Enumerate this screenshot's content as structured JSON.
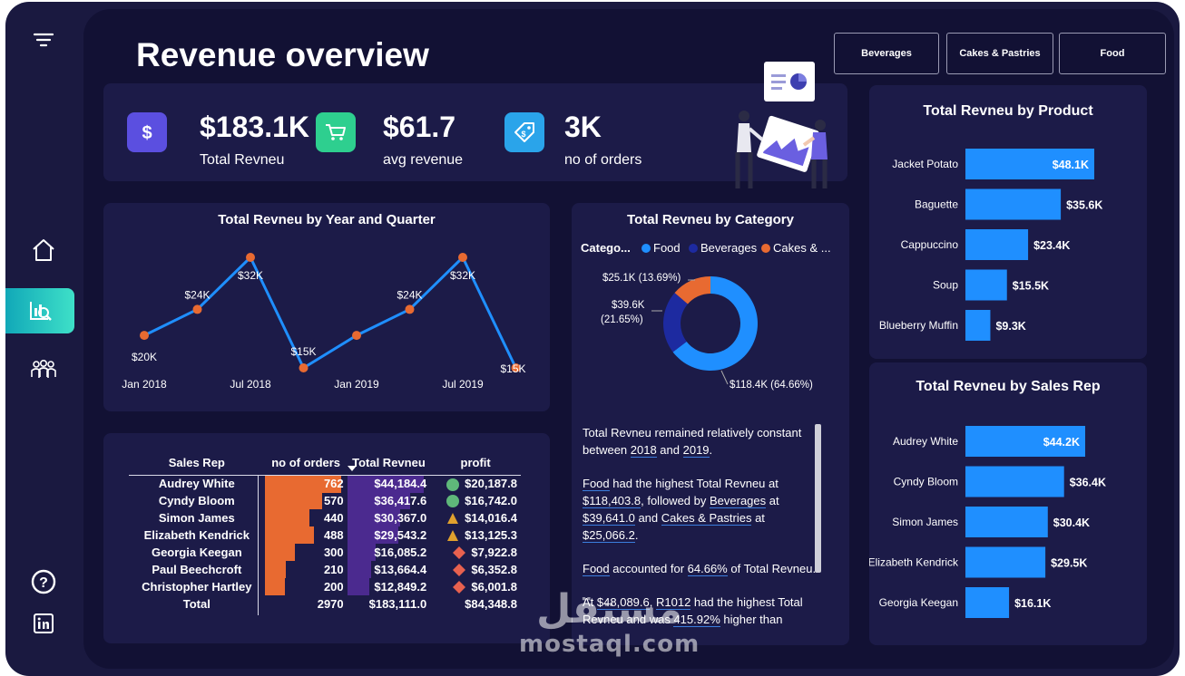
{
  "page": {
    "title": "Revenue overview"
  },
  "slicers": [
    "Beverages",
    "Cakes & Pastries",
    "Food"
  ],
  "sidebar": {
    "items": [
      "filter-icon",
      "home-icon",
      "analytics-icon",
      "team-icon",
      "help-icon",
      "linkedin-icon"
    ],
    "active": "analytics-icon"
  },
  "kpis": [
    {
      "icon": "dollar-icon",
      "color": "#5b4fe0",
      "value": "$183.1K",
      "label": "Total Revneu"
    },
    {
      "icon": "cart-icon",
      "color": "#2ecf8f",
      "value": "$61.7",
      "label": "avg revenue"
    },
    {
      "icon": "tag-icon",
      "color": "#2aa4ea",
      "value": "3K",
      "label": "no of orders"
    }
  ],
  "line_chart": {
    "title": "Total Revneu by Year and Quarter",
    "x_ticks": [
      "Jan 2018",
      "Jul 2018",
      "Jan 2019",
      "Jul 2019"
    ],
    "labels": [
      "$20K",
      "$24K",
      "$32K",
      "$15K",
      "",
      "$24K",
      "$32K",
      "$15K"
    ]
  },
  "donut": {
    "title": "Total Revneu by Category",
    "legend_title": "Catego...",
    "legend": [
      "Food",
      "Beverages",
      "Cakes & ..."
    ],
    "labels": {
      "cakes": "$25.1K (13.69%)",
      "bev_value": "$39.6K",
      "bev_pct": "(21.65%)",
      "food": "$118.4K (64.66%)"
    }
  },
  "table": {
    "headers": [
      "Sales Rep",
      "no of orders",
      "Total Revneu",
      "profit"
    ],
    "rows": [
      {
        "name": "Audrey White",
        "orders": "762",
        "revenue": "$44,184.4",
        "profit": "$20,187.8",
        "mark": "circle"
      },
      {
        "name": "Cyndy Bloom",
        "orders": "570",
        "revenue": "$36,417.6",
        "profit": "$16,742.0",
        "mark": "circle"
      },
      {
        "name": "Simon James",
        "orders": "440",
        "revenue": "$30,367.0",
        "profit": "$14,016.4",
        "mark": "triangle"
      },
      {
        "name": "Elizabeth Kendrick",
        "orders": "488",
        "revenue": "$29,543.2",
        "profit": "$13,125.3",
        "mark": "triangle"
      },
      {
        "name": "Georgia Keegan",
        "orders": "300",
        "revenue": "$16,085.2",
        "profit": "$7,922.8",
        "mark": "diamond"
      },
      {
        "name": "Paul Beechcroft",
        "orders": "210",
        "revenue": "$13,664.4",
        "profit": "$6,352.8",
        "mark": "diamond"
      },
      {
        "name": "Christopher Hartley",
        "orders": "200",
        "revenue": "$12,849.2",
        "profit": "$6,001.8",
        "mark": "diamond"
      }
    ],
    "total": {
      "name": "Total",
      "orders": "2970",
      "revenue": "$183,111.0",
      "profit": "$84,348.8"
    }
  },
  "narrative": {
    "p1": [
      "Total Revneu remained relatively constant between ",
      "2018",
      " and ",
      "2019",
      "."
    ],
    "p2": [
      "Food",
      " had the highest Total Revneu at ",
      "$118,403.8",
      ", followed by ",
      "Beverages",
      " at ",
      "$39,641.0",
      " and ",
      "Cakes & Pastries",
      " at ",
      "$25,066.2",
      "."
    ],
    "p3": [
      "Food",
      " accounted for ",
      "64.66%",
      " of Total Revneu."
    ],
    "p4": [
      "At ",
      "$48,089.6",
      ", ",
      "R1012",
      " had the highest Total Revneu and was ",
      "415.92%",
      " higher than"
    ]
  },
  "product_chart": {
    "title": "Total Revneu by Product",
    "bars": [
      {
        "label": "Jacket Potato",
        "value": "$48.1K"
      },
      {
        "label": "Baguette",
        "value": "$35.6K"
      },
      {
        "label": "Cappuccino",
        "value": "$23.4K"
      },
      {
        "label": "Soup",
        "value": "$15.5K"
      },
      {
        "label": "Blueberry Muffin",
        "value": "$9.3K"
      }
    ]
  },
  "rep_chart": {
    "title": "Total Revneu by Sales Rep",
    "bars": [
      {
        "label": "Audrey White",
        "value": "$44.2K"
      },
      {
        "label": "Cyndy Bloom",
        "value": "$36.4K"
      },
      {
        "label": "Simon James",
        "value": "$30.4K"
      },
      {
        "label": "Elizabeth Kendrick",
        "value": "$29.5K"
      },
      {
        "label": "Georgia Keegan",
        "value": "$16.1K"
      }
    ]
  },
  "chart_data": [
    {
      "type": "line",
      "title": "Total Revneu by Year and Quarter",
      "x": [
        "Jan 2018",
        "Apr 2018",
        "Jul 2018",
        "Oct 2018",
        "Jan 2019",
        "Apr 2019",
        "Jul 2019",
        "Oct 2019"
      ],
      "values": [
        20,
        24,
        32,
        15,
        20,
        24,
        32,
        15
      ],
      "unit": "$K"
    },
    {
      "type": "pie",
      "title": "Total Revneu by Category",
      "categories": [
        "Food",
        "Beverages",
        "Cakes & Pastries"
      ],
      "values": [
        118.4,
        39.6,
        25.1
      ],
      "percent": [
        64.66,
        21.65,
        13.69
      ],
      "colors": [
        "#1f8fff",
        "#1d2aa0",
        "#e86a31"
      ]
    },
    {
      "type": "bar",
      "title": "Total Revneu by Product",
      "categories": [
        "Jacket Potato",
        "Baguette",
        "Cappuccino",
        "Soup",
        "Blueberry Muffin"
      ],
      "values": [
        48.1,
        35.6,
        23.4,
        15.5,
        9.3
      ],
      "unit": "$K"
    },
    {
      "type": "bar",
      "title": "Total Revneu by Sales Rep",
      "categories": [
        "Audrey White",
        "Cyndy Bloom",
        "Simon James",
        "Elizabeth Kendrick",
        "Georgia Keegan"
      ],
      "values": [
        44.2,
        36.4,
        30.4,
        29.5,
        16.1
      ],
      "unit": "$K"
    }
  ],
  "watermark": {
    "arabic": "مستقل",
    "latin": "mostaql.com"
  },
  "colors": {
    "accent": "#1f8fff",
    "orange": "#e86a31",
    "purple": "#4b2a8f",
    "card": "#1c1b48",
    "bg": "#121134"
  }
}
